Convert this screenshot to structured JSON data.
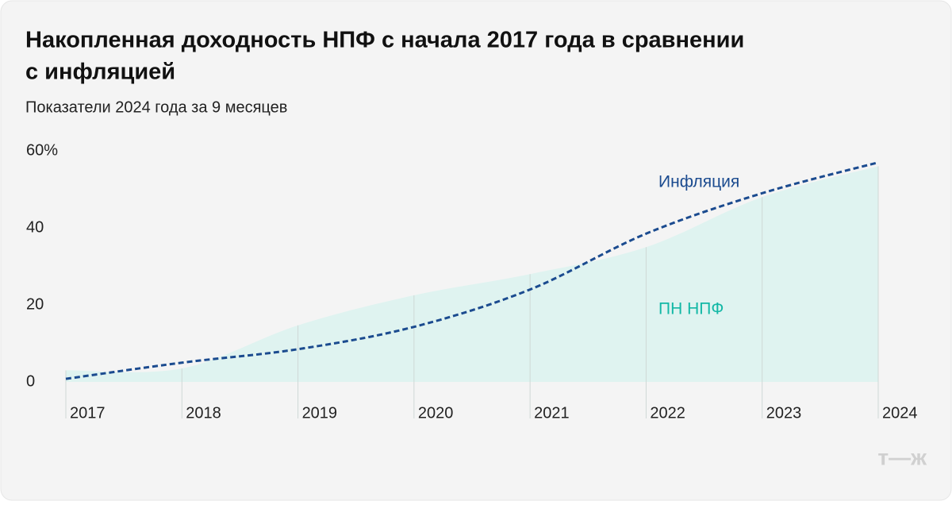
{
  "chart_data": {
    "type": "line",
    "title": [
      "Накопленная доходность НПФ с начала 2017 года в сравнении",
      "с инфляцией"
    ],
    "subtitle": "Показатели 2024 года за 9 месяцев",
    "x": [
      2017,
      2018,
      2019,
      2020,
      2021,
      2022,
      2023,
      2024
    ],
    "xlim": [
      2017,
      2024
    ],
    "xticks": [
      2017,
      2018,
      2019,
      2020,
      2021,
      2022,
      2023,
      2024
    ],
    "ylim": [
      0,
      60
    ],
    "yticks": [
      0,
      20,
      40,
      {
        "value": 60,
        "label": "60%"
      }
    ],
    "series": [
      {
        "name": "ПН НПФ",
        "style": "area",
        "color": "#14b8a6",
        "fill": "#dff3f0",
        "values": [
          3,
          3.5,
          14.7,
          22.5,
          28,
          35,
          48,
          56
        ]
      },
      {
        "name": "Инфляция",
        "style": "dashed",
        "color": "#1b4b8f",
        "values": [
          0.8,
          5,
          8.5,
          14.3,
          24,
          38.5,
          49,
          57
        ]
      }
    ],
    "watermark": "т—ж"
  }
}
